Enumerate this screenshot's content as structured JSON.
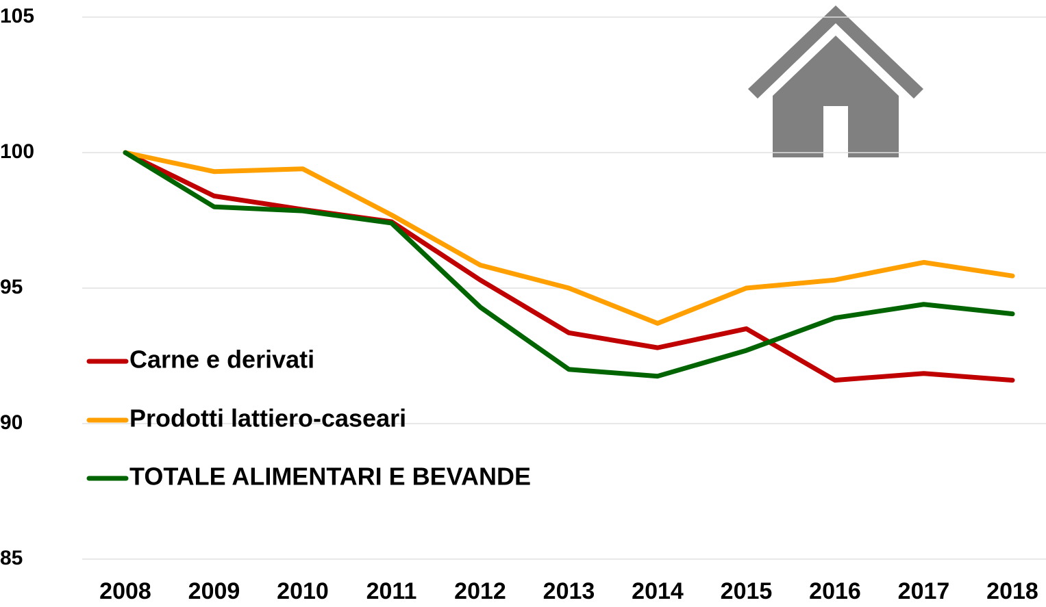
{
  "chart_data": {
    "type": "line",
    "categories": [
      "2008",
      "2009",
      "2010",
      "2011",
      "2012",
      "2013",
      "2014",
      "2015",
      "2016",
      "2017",
      "2018"
    ],
    "series": [
      {
        "name": "Carne e derivati",
        "color": "#c00000",
        "values": [
          100,
          98.4,
          97.9,
          97.45,
          95.3,
          93.35,
          92.8,
          93.5,
          91.6,
          91.85,
          91.6
        ]
      },
      {
        "name": "Prodotti lattiero-caseari",
        "color": "#ffa000",
        "values": [
          100,
          99.3,
          99.4,
          97.7,
          95.85,
          95.0,
          93.7,
          95.0,
          95.3,
          95.95,
          95.45
        ]
      },
      {
        "name": "TOTALE ALIMENTARI E BEVANDE",
        "color": "#006400",
        "values": [
          100,
          98.0,
          97.85,
          97.4,
          94.3,
          92.0,
          91.75,
          92.7,
          93.9,
          94.4,
          94.05
        ]
      }
    ],
    "ylim": [
      85,
      105
    ],
    "yticks": [
      85,
      90,
      95,
      100,
      105
    ],
    "grid": true,
    "legend": "left"
  }
}
